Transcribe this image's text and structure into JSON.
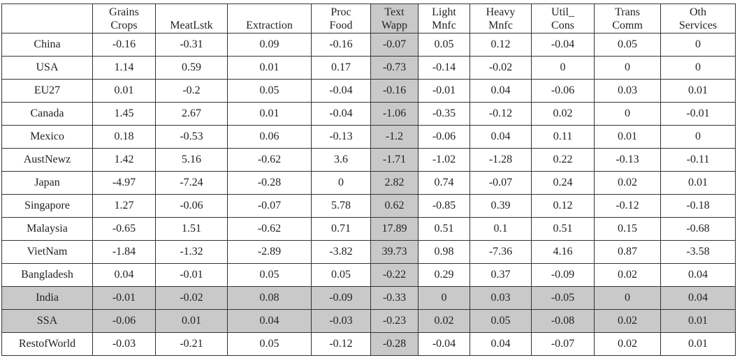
{
  "table": {
    "header": [
      "",
      "Grains\nCrops",
      "MeatLstk",
      "Extraction",
      "Proc\nFood",
      "Text\nWapp",
      "Light\nMnfc",
      "Heavy\nMnfc",
      "Util_\nCons",
      "Trans\nComm",
      "Oth\nServices"
    ],
    "rows": [
      [
        "China",
        "-0.16",
        "-0.31",
        "0.09",
        "-0.16",
        "-0.07",
        "0.05",
        "0.12",
        "-0.04",
        "0.05",
        "0"
      ],
      [
        "USA",
        "1.14",
        "0.59",
        "0.01",
        "0.17",
        "-0.73",
        "-0.14",
        "-0.02",
        "0",
        "0",
        "0"
      ],
      [
        "EU27",
        "0.01",
        "-0.2",
        "0.05",
        "-0.04",
        "-0.16",
        "-0.01",
        "0.04",
        "-0.06",
        "0.03",
        "0.01"
      ],
      [
        "Canada",
        "1.45",
        "2.67",
        "0.01",
        "-0.04",
        "-1.06",
        "-0.35",
        "-0.12",
        "0.02",
        "0",
        "-0.01"
      ],
      [
        "Mexico",
        "0.18",
        "-0.53",
        "0.06",
        "-0.13",
        "-1.2",
        "-0.06",
        "0.04",
        "0.11",
        "0.01",
        "0"
      ],
      [
        "AustNewz",
        "1.42",
        "5.16",
        "-0.62",
        "3.6",
        "-1.71",
        "-1.02",
        "-1.28",
        "0.22",
        "-0.13",
        "-0.11"
      ],
      [
        "Japan",
        "-4.97",
        "-7.24",
        "-0.28",
        "0",
        "2.82",
        "0.74",
        "-0.07",
        "0.24",
        "0.02",
        "0.01"
      ],
      [
        "Singapore",
        "1.27",
        "-0.06",
        "-0.07",
        "5.78",
        "0.62",
        "-0.85",
        "0.39",
        "0.12",
        "-0.12",
        "-0.18"
      ],
      [
        "Malaysia",
        "-0.65",
        "1.51",
        "-0.62",
        "0.71",
        "17.89",
        "0.51",
        "0.1",
        "0.51",
        "0.15",
        "-0.68"
      ],
      [
        "VietNam",
        "-1.84",
        "-1.32",
        "-2.89",
        "-3.82",
        "39.73",
        "0.98",
        "-7.36",
        "4.16",
        "0.87",
        "-3.58"
      ],
      [
        "Bangladesh",
        "0.04",
        "-0.01",
        "0.05",
        "0.05",
        "-0.22",
        "0.29",
        "0.37",
        "-0.09",
        "0.02",
        "0.04"
      ],
      [
        "India",
        "-0.01",
        "-0.02",
        "0.08",
        "-0.09",
        "-0.33",
        "0",
        "0.03",
        "-0.05",
        "0",
        "0.04"
      ],
      [
        "SSA",
        "-0.06",
        "0.01",
        "0.04",
        "-0.03",
        "-0.23",
        "0.02",
        "0.05",
        "-0.08",
        "0.02",
        "0.01"
      ],
      [
        "RestofWorld",
        "-0.03",
        "-0.21",
        "0.05",
        "-0.12",
        "-0.28",
        "-0.04",
        "0.04",
        "-0.07",
        "0.02",
        "0.01"
      ]
    ]
  }
}
